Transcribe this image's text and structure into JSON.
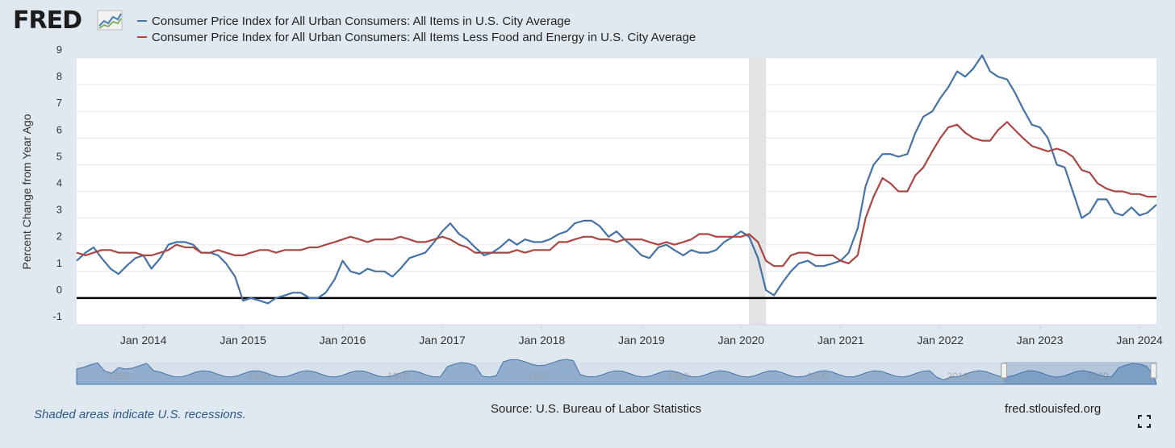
{
  "header": {
    "logo_text": "FRED",
    "logo_icon": "line-chart-icon"
  },
  "legend": [
    {
      "label": "Consumer Price Index for All Urban Consumers: All Items in U.S. City Average",
      "color": "#4572a7"
    },
    {
      "label": "Consumer Price Index for All Urban Consumers: All Items Less Food and Energy in U.S. City Average",
      "color": "#aa4643"
    }
  ],
  "footer": {
    "recession_note": "Shaded areas indicate U.S. recessions.",
    "source": "Source: U.S. Bureau of Labor Statistics",
    "site": "fred.stlouisfed.org",
    "expand_icon": "fullscreen-icon"
  },
  "navigator": {
    "year_labels": [
      "1950",
      "1960",
      "1970",
      "1980",
      "1990",
      "2000",
      "2010",
      "2020"
    ],
    "selected_range": [
      2013.3,
      2024.2
    ]
  },
  "chart_data": {
    "type": "line",
    "ylabel": "Percent Change from Year Ago",
    "xlim": [
      2013.33,
      2024.17
    ],
    "ylim": [
      -1,
      9
    ],
    "yticks": [
      -1,
      0,
      1,
      2,
      3,
      4,
      5,
      6,
      7,
      8,
      9
    ],
    "xticks": [
      {
        "x": 2014,
        "label": "Jan 2014"
      },
      {
        "x": 2015,
        "label": "Jan 2015"
      },
      {
        "x": 2016,
        "label": "Jan 2016"
      },
      {
        "x": 2017,
        "label": "Jan 2017"
      },
      {
        "x": 2018,
        "label": "Jan 2018"
      },
      {
        "x": 2019,
        "label": "Jan 2019"
      },
      {
        "x": 2020,
        "label": "Jan 2020"
      },
      {
        "x": 2021,
        "label": "Jan 2021"
      },
      {
        "x": 2022,
        "label": "Jan 2022"
      },
      {
        "x": 2023,
        "label": "Jan 2023"
      },
      {
        "x": 2024,
        "label": "Jan 2024"
      }
    ],
    "recessions": [
      [
        2020.08,
        2020.25
      ]
    ],
    "grid": true,
    "zero_line": true,
    "series": [
      {
        "name": "Consumer Price Index for All Urban Consumers: All Items in U.S. City Average",
        "color": "#4572a7",
        "points": [
          [
            2013.33,
            1.4
          ],
          [
            2013.42,
            1.7
          ],
          [
            2013.5,
            1.9
          ],
          [
            2013.58,
            1.5
          ],
          [
            2013.67,
            1.1
          ],
          [
            2013.75,
            0.9
          ],
          [
            2013.83,
            1.2
          ],
          [
            2013.92,
            1.5
          ],
          [
            2014.0,
            1.6
          ],
          [
            2014.08,
            1.1
          ],
          [
            2014.17,
            1.5
          ],
          [
            2014.25,
            2.0
          ],
          [
            2014.33,
            2.1
          ],
          [
            2014.42,
            2.1
          ],
          [
            2014.5,
            2.0
          ],
          [
            2014.58,
            1.7
          ],
          [
            2014.67,
            1.7
          ],
          [
            2014.75,
            1.6
          ],
          [
            2014.83,
            1.3
          ],
          [
            2014.92,
            0.8
          ],
          [
            2015.0,
            -0.1
          ],
          [
            2015.08,
            0.0
          ],
          [
            2015.17,
            -0.1
          ],
          [
            2015.25,
            -0.2
          ],
          [
            2015.33,
            0.0
          ],
          [
            2015.42,
            0.1
          ],
          [
            2015.5,
            0.2
          ],
          [
            2015.58,
            0.2
          ],
          [
            2015.67,
            0.0
          ],
          [
            2015.75,
            0.0
          ],
          [
            2015.83,
            0.2
          ],
          [
            2015.92,
            0.7
          ],
          [
            2016.0,
            1.4
          ],
          [
            2016.08,
            1.0
          ],
          [
            2016.17,
            0.9
          ],
          [
            2016.25,
            1.1
          ],
          [
            2016.33,
            1.0
          ],
          [
            2016.42,
            1.0
          ],
          [
            2016.5,
            0.8
          ],
          [
            2016.58,
            1.1
          ],
          [
            2016.67,
            1.5
          ],
          [
            2016.75,
            1.6
          ],
          [
            2016.83,
            1.7
          ],
          [
            2016.92,
            2.1
          ],
          [
            2017.0,
            2.5
          ],
          [
            2017.08,
            2.8
          ],
          [
            2017.17,
            2.4
          ],
          [
            2017.25,
            2.2
          ],
          [
            2017.33,
            1.9
          ],
          [
            2017.42,
            1.6
          ],
          [
            2017.5,
            1.7
          ],
          [
            2017.58,
            1.9
          ],
          [
            2017.67,
            2.2
          ],
          [
            2017.75,
            2.0
          ],
          [
            2017.83,
            2.2
          ],
          [
            2017.92,
            2.1
          ],
          [
            2018.0,
            2.1
          ],
          [
            2018.08,
            2.2
          ],
          [
            2018.17,
            2.4
          ],
          [
            2018.25,
            2.5
          ],
          [
            2018.33,
            2.8
          ],
          [
            2018.42,
            2.9
          ],
          [
            2018.5,
            2.9
          ],
          [
            2018.58,
            2.7
          ],
          [
            2018.67,
            2.3
          ],
          [
            2018.75,
            2.5
          ],
          [
            2018.83,
            2.2
          ],
          [
            2018.92,
            1.9
          ],
          [
            2019.0,
            1.6
          ],
          [
            2019.08,
            1.5
          ],
          [
            2019.17,
            1.9
          ],
          [
            2019.25,
            2.0
          ],
          [
            2019.33,
            1.8
          ],
          [
            2019.42,
            1.6
          ],
          [
            2019.5,
            1.8
          ],
          [
            2019.58,
            1.7
          ],
          [
            2019.67,
            1.7
          ],
          [
            2019.75,
            1.8
          ],
          [
            2019.83,
            2.1
          ],
          [
            2019.92,
            2.3
          ],
          [
            2020.0,
            2.5
          ],
          [
            2020.08,
            2.3
          ],
          [
            2020.17,
            1.5
          ],
          [
            2020.25,
            0.3
          ],
          [
            2020.33,
            0.1
          ],
          [
            2020.42,
            0.6
          ],
          [
            2020.5,
            1.0
          ],
          [
            2020.58,
            1.3
          ],
          [
            2020.67,
            1.4
          ],
          [
            2020.75,
            1.2
          ],
          [
            2020.83,
            1.2
          ],
          [
            2020.92,
            1.3
          ],
          [
            2021.0,
            1.4
          ],
          [
            2021.08,
            1.7
          ],
          [
            2021.17,
            2.6
          ],
          [
            2021.25,
            4.2
          ],
          [
            2021.33,
            5.0
          ],
          [
            2021.42,
            5.4
          ],
          [
            2021.5,
            5.4
          ],
          [
            2021.58,
            5.3
          ],
          [
            2021.67,
            5.4
          ],
          [
            2021.75,
            6.2
          ],
          [
            2021.83,
            6.8
          ],
          [
            2021.92,
            7.0
          ],
          [
            2022.0,
            7.5
          ],
          [
            2022.08,
            7.9
          ],
          [
            2022.17,
            8.5
          ],
          [
            2022.25,
            8.3
          ],
          [
            2022.33,
            8.6
          ],
          [
            2022.42,
            9.1
          ],
          [
            2022.5,
            8.5
          ],
          [
            2022.58,
            8.3
          ],
          [
            2022.67,
            8.2
          ],
          [
            2022.75,
            7.7
          ],
          [
            2022.83,
            7.1
          ],
          [
            2022.92,
            6.5
          ],
          [
            2023.0,
            6.4
          ],
          [
            2023.08,
            6.0
          ],
          [
            2023.17,
            5.0
          ],
          [
            2023.25,
            4.9
          ],
          [
            2023.33,
            4.0
          ],
          [
            2023.42,
            3.0
          ],
          [
            2023.5,
            3.2
          ],
          [
            2023.58,
            3.7
          ],
          [
            2023.67,
            3.7
          ],
          [
            2023.75,
            3.2
          ],
          [
            2023.83,
            3.1
          ],
          [
            2023.92,
            3.4
          ],
          [
            2024.0,
            3.1
          ],
          [
            2024.08,
            3.2
          ],
          [
            2024.17,
            3.5
          ]
        ]
      },
      {
        "name": "Consumer Price Index for All Urban Consumers: All Items Less Food and Energy in U.S. City Average",
        "color": "#aa4643",
        "points": [
          [
            2013.33,
            1.7
          ],
          [
            2013.42,
            1.6
          ],
          [
            2013.5,
            1.7
          ],
          [
            2013.58,
            1.8
          ],
          [
            2013.67,
            1.8
          ],
          [
            2013.75,
            1.7
          ],
          [
            2013.83,
            1.7
          ],
          [
            2013.92,
            1.7
          ],
          [
            2014.0,
            1.6
          ],
          [
            2014.08,
            1.6
          ],
          [
            2014.17,
            1.7
          ],
          [
            2014.25,
            1.8
          ],
          [
            2014.33,
            2.0
          ],
          [
            2014.42,
            1.9
          ],
          [
            2014.5,
            1.9
          ],
          [
            2014.58,
            1.7
          ],
          [
            2014.67,
            1.7
          ],
          [
            2014.75,
            1.8
          ],
          [
            2014.83,
            1.7
          ],
          [
            2014.92,
            1.6
          ],
          [
            2015.0,
            1.6
          ],
          [
            2015.08,
            1.7
          ],
          [
            2015.17,
            1.8
          ],
          [
            2015.25,
            1.8
          ],
          [
            2015.33,
            1.7
          ],
          [
            2015.42,
            1.8
          ],
          [
            2015.5,
            1.8
          ],
          [
            2015.58,
            1.8
          ],
          [
            2015.67,
            1.9
          ],
          [
            2015.75,
            1.9
          ],
          [
            2015.83,
            2.0
          ],
          [
            2015.92,
            2.1
          ],
          [
            2016.0,
            2.2
          ],
          [
            2016.08,
            2.3
          ],
          [
            2016.17,
            2.2
          ],
          [
            2016.25,
            2.1
          ],
          [
            2016.33,
            2.2
          ],
          [
            2016.42,
            2.2
          ],
          [
            2016.5,
            2.2
          ],
          [
            2016.58,
            2.3
          ],
          [
            2016.67,
            2.2
          ],
          [
            2016.75,
            2.1
          ],
          [
            2016.83,
            2.1
          ],
          [
            2016.92,
            2.2
          ],
          [
            2017.0,
            2.3
          ],
          [
            2017.08,
            2.2
          ],
          [
            2017.17,
            2.0
          ],
          [
            2017.25,
            1.9
          ],
          [
            2017.33,
            1.7
          ],
          [
            2017.42,
            1.7
          ],
          [
            2017.5,
            1.7
          ],
          [
            2017.58,
            1.7
          ],
          [
            2017.67,
            1.7
          ],
          [
            2017.75,
            1.8
          ],
          [
            2017.83,
            1.7
          ],
          [
            2017.92,
            1.8
          ],
          [
            2018.0,
            1.8
          ],
          [
            2018.08,
            1.8
          ],
          [
            2018.17,
            2.1
          ],
          [
            2018.25,
            2.1
          ],
          [
            2018.33,
            2.2
          ],
          [
            2018.42,
            2.3
          ],
          [
            2018.5,
            2.3
          ],
          [
            2018.58,
            2.2
          ],
          [
            2018.67,
            2.2
          ],
          [
            2018.75,
            2.1
          ],
          [
            2018.83,
            2.2
          ],
          [
            2018.92,
            2.2
          ],
          [
            2019.0,
            2.2
          ],
          [
            2019.08,
            2.1
          ],
          [
            2019.17,
            2.0
          ],
          [
            2019.25,
            2.1
          ],
          [
            2019.33,
            2.0
          ],
          [
            2019.42,
            2.1
          ],
          [
            2019.5,
            2.2
          ],
          [
            2019.58,
            2.4
          ],
          [
            2019.67,
            2.4
          ],
          [
            2019.75,
            2.3
          ],
          [
            2019.83,
            2.3
          ],
          [
            2019.92,
            2.3
          ],
          [
            2020.0,
            2.3
          ],
          [
            2020.08,
            2.4
          ],
          [
            2020.17,
            2.1
          ],
          [
            2020.25,
            1.4
          ],
          [
            2020.33,
            1.2
          ],
          [
            2020.42,
            1.2
          ],
          [
            2020.5,
            1.6
          ],
          [
            2020.58,
            1.7
          ],
          [
            2020.67,
            1.7
          ],
          [
            2020.75,
            1.6
          ],
          [
            2020.83,
            1.6
          ],
          [
            2020.92,
            1.6
          ],
          [
            2021.0,
            1.4
          ],
          [
            2021.08,
            1.3
          ],
          [
            2021.17,
            1.6
          ],
          [
            2021.25,
            3.0
          ],
          [
            2021.33,
            3.8
          ],
          [
            2021.42,
            4.5
          ],
          [
            2021.5,
            4.3
          ],
          [
            2021.58,
            4.0
          ],
          [
            2021.67,
            4.0
          ],
          [
            2021.75,
            4.6
          ],
          [
            2021.83,
            4.9
          ],
          [
            2021.92,
            5.5
          ],
          [
            2022.0,
            6.0
          ],
          [
            2022.08,
            6.4
          ],
          [
            2022.17,
            6.5
          ],
          [
            2022.25,
            6.2
          ],
          [
            2022.33,
            6.0
          ],
          [
            2022.42,
            5.9
          ],
          [
            2022.5,
            5.9
          ],
          [
            2022.58,
            6.3
          ],
          [
            2022.67,
            6.6
          ],
          [
            2022.75,
            6.3
          ],
          [
            2022.83,
            6.0
          ],
          [
            2022.92,
            5.7
          ],
          [
            2023.0,
            5.6
          ],
          [
            2023.08,
            5.5
          ],
          [
            2023.17,
            5.6
          ],
          [
            2023.25,
            5.5
          ],
          [
            2023.33,
            5.3
          ],
          [
            2023.42,
            4.8
          ],
          [
            2023.5,
            4.7
          ],
          [
            2023.58,
            4.3
          ],
          [
            2023.67,
            4.1
          ],
          [
            2023.75,
            4.0
          ],
          [
            2023.83,
            4.0
          ],
          [
            2023.92,
            3.9
          ],
          [
            2024.0,
            3.9
          ],
          [
            2024.08,
            3.8
          ],
          [
            2024.17,
            3.8
          ]
        ]
      }
    ]
  }
}
